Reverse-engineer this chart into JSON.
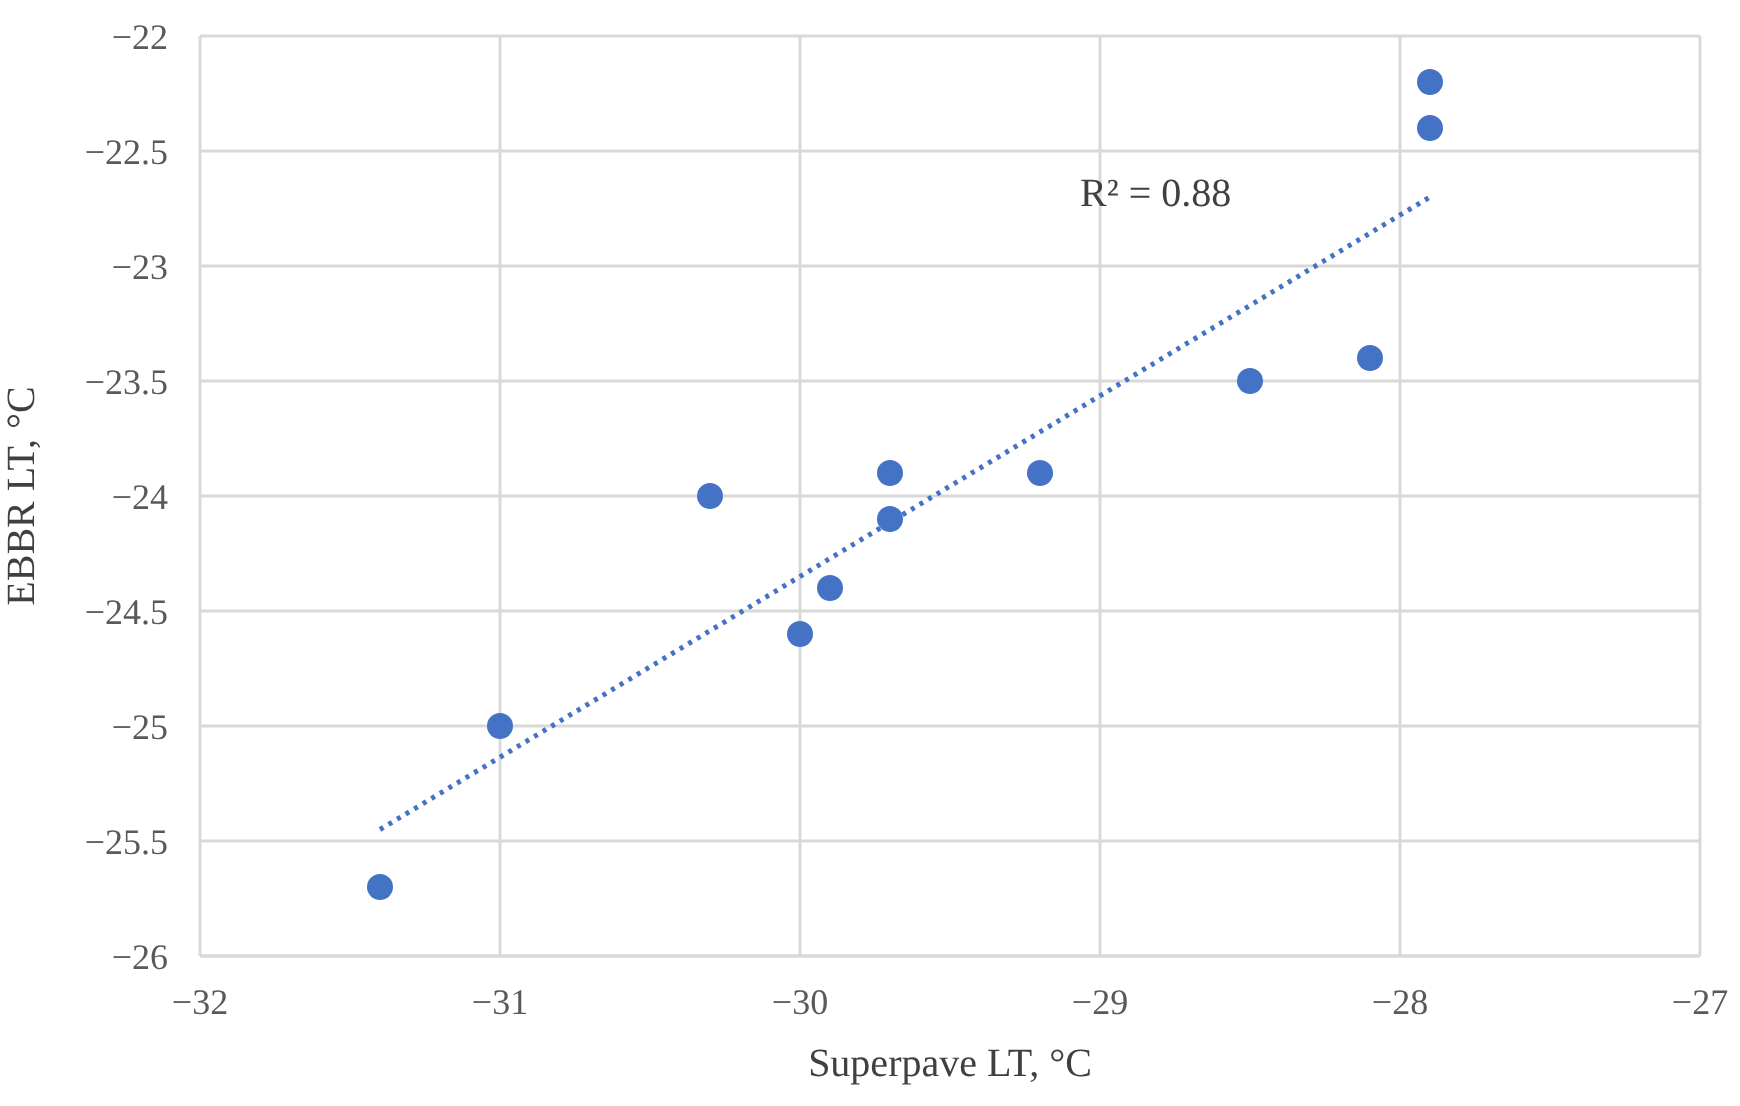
{
  "chart_data": {
    "type": "scatter",
    "xlabel": "Superpave LT, °C",
    "ylabel": "EBBR LT, °C",
    "xlim": [
      -32,
      -27
    ],
    "xticks": [
      {
        "value": -32,
        "label": "−32"
      },
      {
        "value": -31,
        "label": "−31"
      },
      {
        "value": -30,
        "label": "−30"
      },
      {
        "value": -29,
        "label": "−29"
      },
      {
        "value": -28,
        "label": "−28"
      },
      {
        "value": -27,
        "label": "−27"
      }
    ],
    "ylim": [
      -26,
      -22
    ],
    "yticks": [
      {
        "value": -26,
        "label": "−26"
      },
      {
        "value": -25.5,
        "label": "−25.5"
      },
      {
        "value": -25,
        "label": "−25"
      },
      {
        "value": -24.5,
        "label": "−24.5"
      },
      {
        "value": -24,
        "label": "−24"
      },
      {
        "value": -23.5,
        "label": "−23.5"
      },
      {
        "value": -23,
        "label": "−23"
      },
      {
        "value": -22.5,
        "label": "−22.5"
      },
      {
        "value": -22,
        "label": "−22"
      }
    ],
    "grid": true,
    "marker": "circle",
    "annotations": [
      "R² = 0.88"
    ],
    "series": [
      {
        "color": "#4472c4",
        "x": [
          -31.4,
          -31,
          -30.3,
          -30,
          -29.9,
          -29.7,
          -29.7,
          -29.2,
          -28.5,
          -28.1,
          -27.9,
          -27.9
        ],
        "values": [
          -25.7,
          -25,
          -24,
          -24.6,
          -24.4,
          -23.9,
          -24.1,
          -23.9,
          -23.5,
          -23.4,
          -22.2,
          -22.4
        ]
      },
      {
        "type": "line",
        "color": "#4472c4",
        "line_style": "dotted",
        "marker": "none",
        "x": [
          -31.4,
          -27.9
        ],
        "values": [
          -25.45,
          -22.7
        ]
      }
    ]
  }
}
